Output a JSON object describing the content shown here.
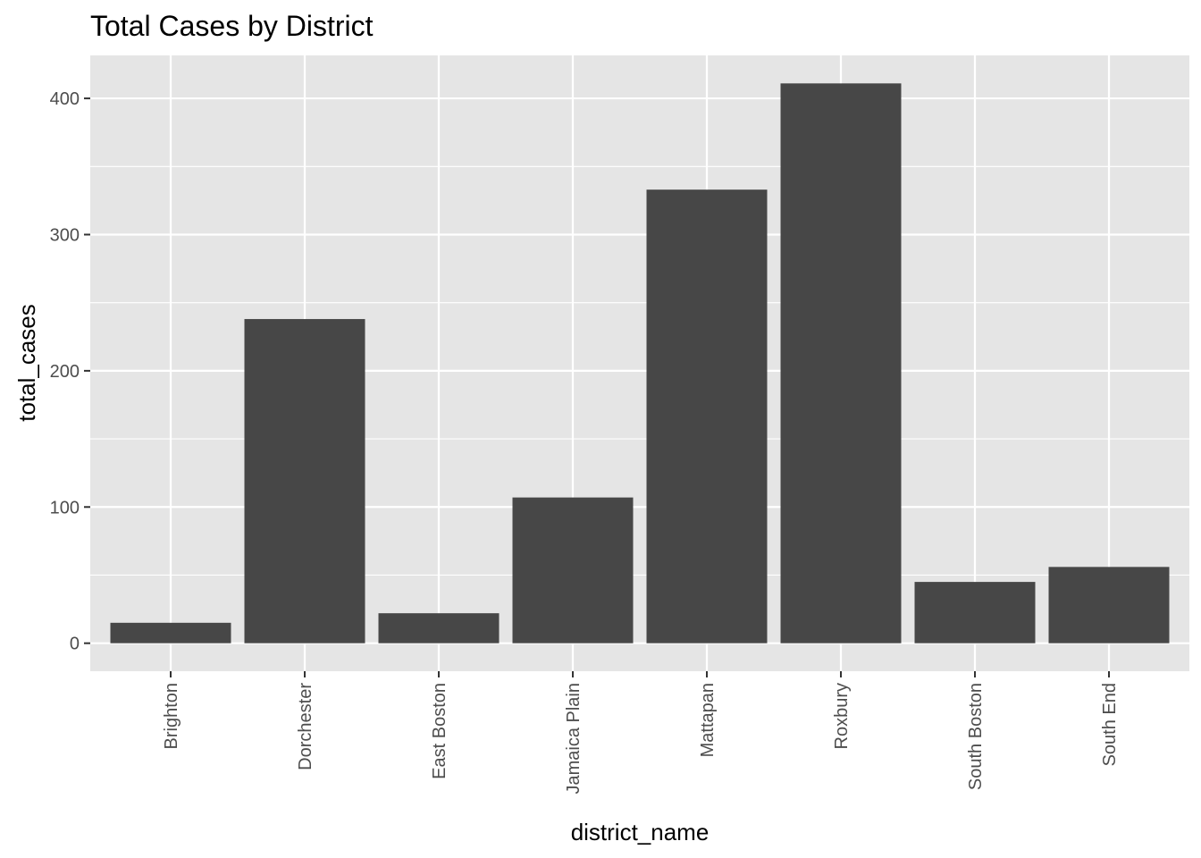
{
  "chart_data": {
    "type": "bar",
    "title": "Total Cases by District",
    "xlabel": "district_name",
    "ylabel": "total_cases",
    "categories": [
      "Brighton",
      "Dorchester",
      "East Boston",
      "Jamaica Plain",
      "Mattapan",
      "Roxbury",
      "South Boston",
      "South End"
    ],
    "values": [
      15,
      238,
      22,
      107,
      333,
      411,
      45,
      56
    ],
    "ylim": [
      -20.55,
      431.55
    ],
    "yticks": [
      0,
      100,
      200,
      300,
      400
    ],
    "ytick_labels": [
      "0",
      "100",
      "200",
      "300",
      "400"
    ],
    "grid": true,
    "legend": "none",
    "colors": {
      "panel_background": "#e5e5e5",
      "grid": "#ffffff",
      "bar": "#474747",
      "tick": "#333333",
      "tick_label": "#4d4d4d"
    }
  }
}
